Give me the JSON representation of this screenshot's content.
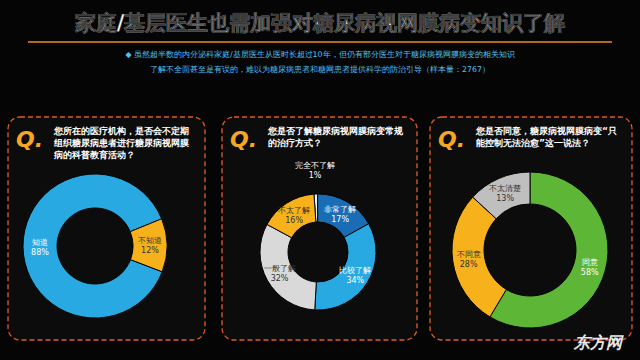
{
  "header": {
    "title": "家庭/基层医生也需加强对糖尿病视网膜病变知识了解",
    "subtitle": [
      "◆ 虽然超半数的内分泌科家庭/基层医生从医时长超过10年，但仍有部分医生对于糖尿病视网膜病变的相关知识",
      "了解不全面甚至是有误的，难以为糖尿病患者和糖网患者提供科学的防治引导（样本量：2767）"
    ],
    "question_mark": "Q."
  },
  "chart_data": [
    {
      "type": "donut",
      "title": "您所在的医疗机构，是否会不定期组织糖尿病患者进行糖尿病视网膜病的科普教育活动？",
      "categories": [
        "知道",
        "不知道"
      ],
      "values": [
        88,
        12
      ],
      "value_labels": [
        "88%",
        "12%"
      ],
      "colors": [
        "#29a9e1",
        "#f7b21b"
      ],
      "data_labels": true
    },
    {
      "type": "donut",
      "title": "您是否了解糖尿病视网膜病变常规的治疗方式？",
      "categories": [
        "完全不了解",
        "非常了解",
        "比较了解",
        "一般了解",
        "不太了解"
      ],
      "values": [
        1,
        17,
        34,
        32,
        16
      ],
      "value_labels": [
        "1%",
        "17%",
        "34%",
        "32%",
        "16%"
      ],
      "colors": [
        "#f2f2f2",
        "#1a6db5",
        "#29a9e1",
        "#d9d9d9",
        "#f7b21b"
      ],
      "data_labels": true
    },
    {
      "type": "donut",
      "title": "您是否同意，糖尿病视网膜病变“只能控制无法治愈”这一说法？",
      "categories": [
        "同意",
        "不同意",
        "不太清楚"
      ],
      "values": [
        58,
        28,
        13
      ],
      "value_labels": [
        "58%",
        "28%",
        "13%"
      ],
      "colors": [
        "#5db636",
        "#f7b21b",
        "#bfbfbf"
      ],
      "data_labels": true
    }
  ],
  "footer": {
    "logo": "东方网"
  }
}
